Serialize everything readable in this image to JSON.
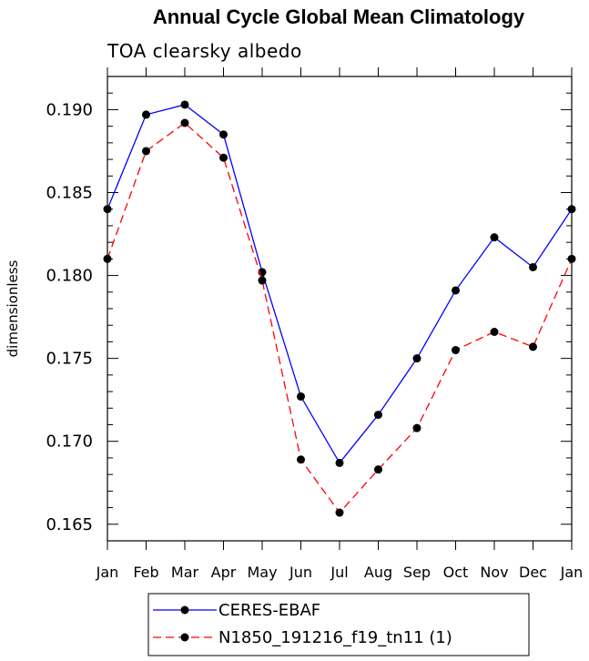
{
  "chart_data": {
    "type": "line",
    "title": "Annual Cycle Global Mean Climatology",
    "subtitle": "TOA clearsky albedo",
    "xlabel": "",
    "ylabel": "dimensionless",
    "categories": [
      "Jan",
      "Feb",
      "Mar",
      "Apr",
      "May",
      "Jun",
      "Jul",
      "Aug",
      "Sep",
      "Oct",
      "Nov",
      "Dec",
      "Jan"
    ],
    "ylim": [
      0.164,
      0.192
    ],
    "yticks": [
      0.165,
      0.17,
      0.175,
      0.18,
      0.185,
      0.19
    ],
    "ytick_labels": [
      "0.165",
      "0.170",
      "0.175",
      "0.180",
      "0.185",
      "0.190"
    ],
    "legend_position": "bottom-center",
    "series": [
      {
        "name": "CERES-EBAF",
        "color": "#0000ff",
        "style": "solid",
        "values": [
          0.184,
          0.1897,
          0.1903,
          0.1885,
          0.1802,
          0.1727,
          0.1687,
          0.1716,
          0.175,
          0.1791,
          0.1823,
          0.1805,
          0.184
        ]
      },
      {
        "name": "N1850_191216_f19_tn11 (1)",
        "color": "#ff0000",
        "style": "dashed",
        "values": [
          0.181,
          0.1875,
          0.1892,
          0.1871,
          0.1797,
          0.1689,
          0.1657,
          0.1683,
          0.1708,
          0.1755,
          0.1766,
          0.1757,
          0.181
        ]
      }
    ]
  }
}
